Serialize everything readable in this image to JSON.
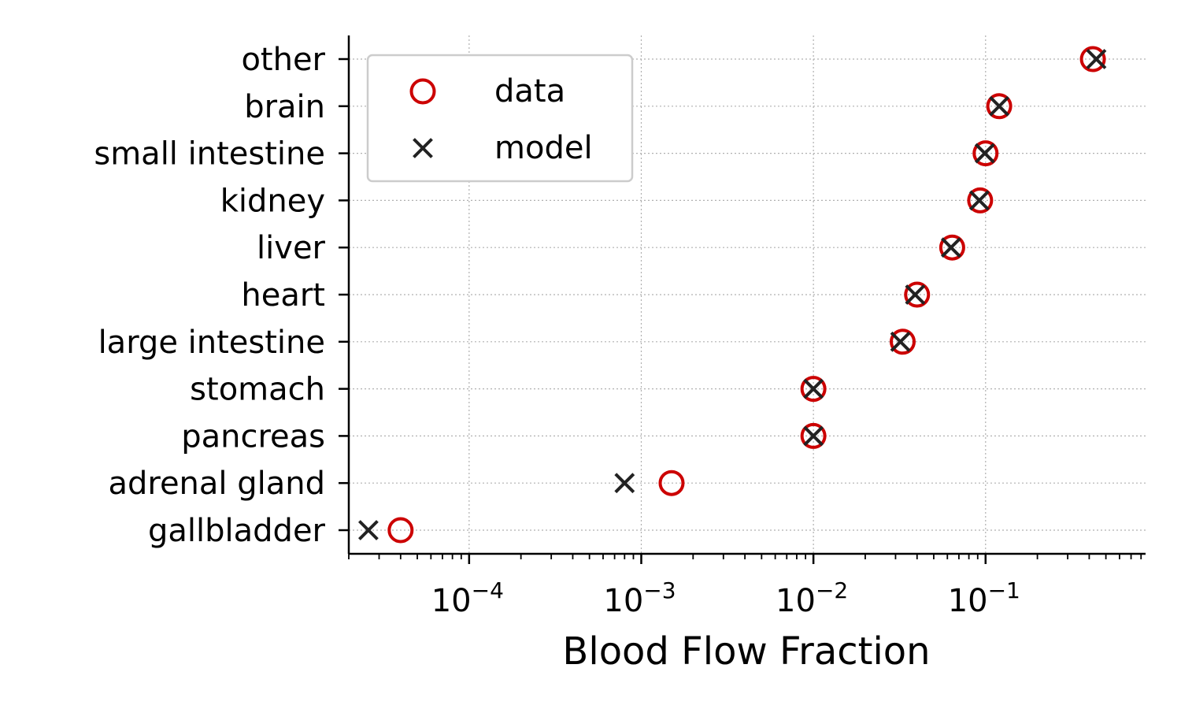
{
  "chart_data": {
    "type": "scatter",
    "orientation": "horizontal",
    "categories": [
      "other",
      "brain",
      "small intestine",
      "kidney",
      "liver",
      "heart",
      "large intestine",
      "stomach",
      "pancreas",
      "adrenal gland",
      "gallbladder"
    ],
    "series": [
      {
        "name": "data",
        "marker": "open-circle",
        "color": "#cc0000",
        "values": [
          0.42,
          0.12,
          0.1,
          0.093,
          0.064,
          0.04,
          0.033,
          0.01,
          0.01,
          0.0015,
          4e-05
        ]
      },
      {
        "name": "model",
        "marker": "x",
        "color": "#222222",
        "values": [
          0.44,
          0.12,
          0.099,
          0.092,
          0.063,
          0.039,
          0.032,
          0.01,
          0.01,
          0.0008,
          2.6e-05
        ]
      }
    ],
    "xlabel": "Blood Flow Fraction",
    "xscale": "log",
    "xlim": [
      2e-05,
      0.85
    ],
    "xticks": [
      {
        "base": "10",
        "exp": "−4",
        "value": 0.0001
      },
      {
        "base": "10",
        "exp": "−3",
        "value": 0.001
      },
      {
        "base": "10",
        "exp": "−2",
        "value": 0.01
      },
      {
        "base": "10",
        "exp": "−1",
        "value": 0.1
      }
    ],
    "grid": true,
    "legend_position": "top-left"
  }
}
